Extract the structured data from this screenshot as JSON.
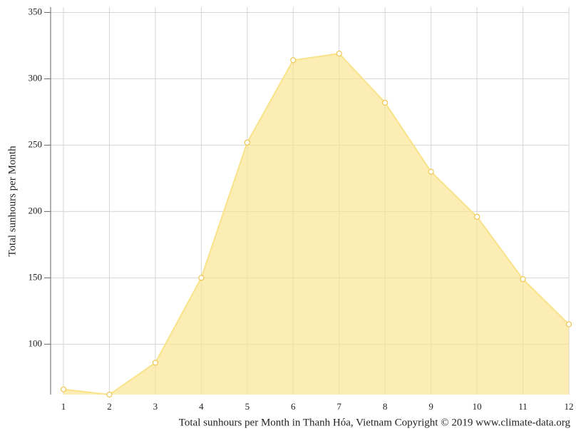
{
  "chart_data": {
    "type": "area",
    "title": "Total sunhours per Month in Thanh Hóa, Vietnam Copyright © 2019 www.climate-data.org",
    "y_label": "Total sunhours per Month",
    "x": [
      1,
      2,
      3,
      4,
      5,
      6,
      7,
      8,
      9,
      10,
      11,
      12
    ],
    "values": [
      66,
      62,
      86,
      150,
      252,
      314,
      319,
      282,
      230,
      196,
      149,
      115
    ],
    "color": "#f9e38a",
    "xlim": [
      1,
      12
    ],
    "xticks": [
      1,
      2,
      3,
      4,
      5,
      6,
      7,
      8,
      9,
      10,
      11,
      12
    ],
    "ylim": [
      62,
      354
    ],
    "yticks": [
      100,
      150,
      200,
      250,
      300,
      350
    ],
    "grid": true
  }
}
